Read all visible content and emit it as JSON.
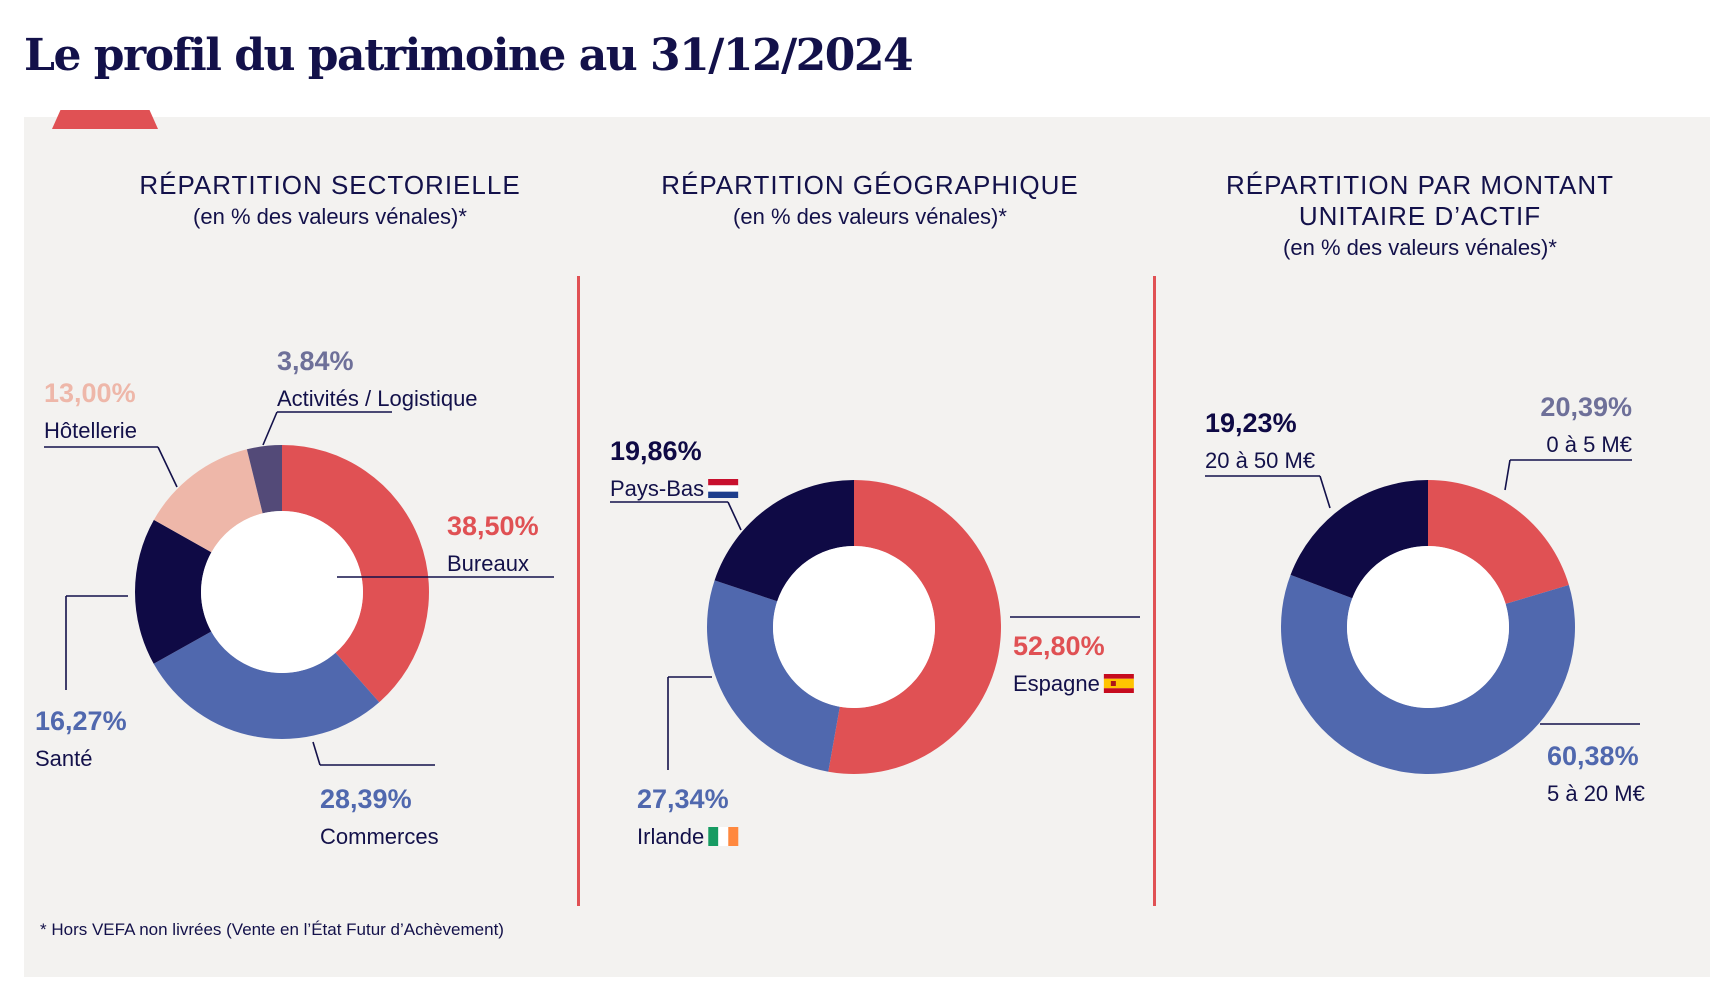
{
  "title": "Le profil du patrimoine au 31/12/2024",
  "footnote": "* Hors VEFA non livrées (Vente en l’État Futur d’Achèvement)",
  "headings": [
    {
      "title_lines": [
        "RÉPARTITION SECTORIELLE"
      ],
      "subtitle": "(en % des valeurs vénales)*"
    },
    {
      "title_lines": [
        "RÉPARTITION GÉOGRAPHIQUE"
      ],
      "subtitle": "(en % des valeurs vénales)*"
    },
    {
      "title_lines": [
        "RÉPARTITION PAR MONTANT",
        "UNITAIRE D’ACTIF"
      ],
      "subtitle": "(en % des valeurs vénales)*"
    }
  ],
  "colors": {
    "red": "#e05154",
    "blue": "#5068ae",
    "navy": "#0f0a45",
    "pink": "#eeb7a9",
    "purple": "#534a78",
    "lavender": "#6e7099",
    "background": "#f3f2f0",
    "accent": "#e05154"
  },
  "chart_data": [
    {
      "type": "pie",
      "variant": "donut",
      "start": "top",
      "direction": "clockwise",
      "slices": [
        {
          "label": "Bureaux",
          "value": 38.5,
          "value_text": "38,50%",
          "color": "#e05154",
          "value_color": "#e05154"
        },
        {
          "label": "Commerces",
          "value": 28.39,
          "value_text": "28,39%",
          "color": "#5068ae",
          "value_color": "#5068ae"
        },
        {
          "label": "Santé",
          "value": 16.27,
          "value_text": "16,27%",
          "color": "#0f0a45",
          "value_color": "#5068ae"
        },
        {
          "label": "Hôtellerie",
          "value": 13.0,
          "value_text": "13,00%",
          "color": "#eeb7a9",
          "value_color": "#eeb7a9"
        },
        {
          "label": "Activités / Logistique",
          "value": 3.84,
          "value_text": "3,84%",
          "color": "#534a78",
          "value_color": "#6e7099"
        }
      ]
    },
    {
      "type": "pie",
      "variant": "donut",
      "start": "top",
      "direction": "clockwise",
      "slices": [
        {
          "label": "Espagne",
          "value": 52.8,
          "value_text": "52,80%",
          "color": "#e05154",
          "value_color": "#e05154",
          "flag": "spain-flag-icon"
        },
        {
          "label": "Irlande",
          "value": 27.34,
          "value_text": "27,34%",
          "color": "#5068ae",
          "value_color": "#5068ae",
          "flag": "ireland-flag-icon"
        },
        {
          "label": "Pays-Bas",
          "value": 19.86,
          "value_text": "19,86%",
          "color": "#0f0a45",
          "value_color": "#0f0a45",
          "flag": "netherlands-flag-icon"
        }
      ]
    },
    {
      "type": "pie",
      "variant": "donut",
      "start": "top",
      "direction": "clockwise",
      "slices": [
        {
          "label": "0 à 5 M€",
          "value": 20.39,
          "value_text": "20,39%",
          "color": "#e05154",
          "value_color": "#6e7099"
        },
        {
          "label": "5 à 20 M€",
          "value": 60.38,
          "value_text": "60,38%",
          "color": "#5068ae",
          "value_color": "#5068ae"
        },
        {
          "label": "20 à 50 M€",
          "value": 19.23,
          "value_text": "19,23%",
          "color": "#0f0a45",
          "value_color": "#0f0a45"
        }
      ]
    }
  ]
}
